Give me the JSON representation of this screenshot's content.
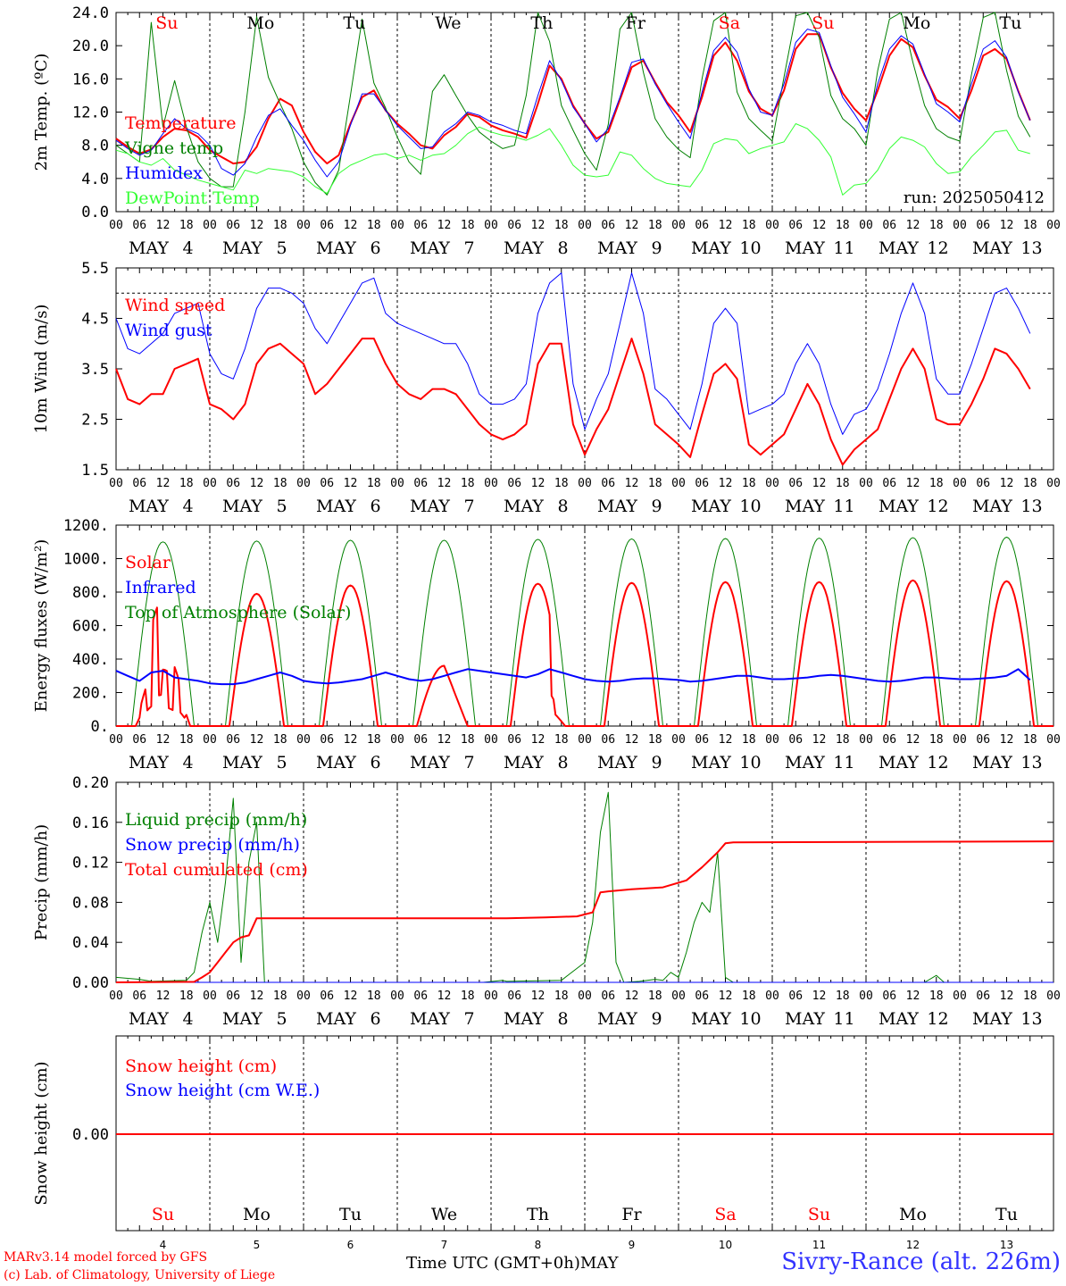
{
  "colors": {
    "red": "#ff0000",
    "green": "#008000",
    "blue": "#0000ff",
    "lightgreen": "#33ff33",
    "black": "#000000"
  },
  "day_numbers": [
    4,
    5,
    6,
    7,
    8,
    9,
    10,
    11,
    12,
    13
  ],
  "weekdays": [
    "Su",
    "Mo",
    "Tu",
    "We",
    "Th",
    "Fr",
    "Sa",
    "Su",
    "Mo",
    "Tu"
  ],
  "weekday_colors": [
    "red",
    "black",
    "black",
    "black",
    "black",
    "black",
    "red",
    "red",
    "black",
    "black"
  ],
  "month_label": "MAY",
  "hour_ticks": [
    "00",
    "06",
    "12",
    "18"
  ],
  "footer": {
    "credit_line1": "MARv3.14 model forced by GFS",
    "credit_line2": "(c) Lab. of Climatology, University of Liege",
    "x_title": "Time UTC (GMT+0h)",
    "x_title_month": "MAY",
    "station": "Sivry-Rance (alt. 226m)"
  },
  "chart_data": [
    {
      "type": "line",
      "id": "temperature",
      "ylabel": "2m Temp. (ºC)",
      "ylim": [
        0,
        24
      ],
      "yticks": [
        "0.0",
        "4.0",
        "8.0",
        "12.0",
        "16.0",
        "20.0",
        "24.0"
      ],
      "x_unit": "hours since MAY 4 00 UTC (3-hourly)",
      "annotation": "run: 2025050412",
      "series": [
        {
          "name": "Temperature",
          "color": "red",
          "width": 2,
          "values": [
            8.8,
            7.8,
            7.0,
            7.5,
            9.0,
            10.0,
            9.8,
            9.0,
            7.4,
            6.6,
            5.8,
            6.0,
            7.8,
            11.2,
            13.6,
            12.8,
            9.6,
            7.2,
            5.8,
            6.8,
            10.6,
            13.8,
            14.6,
            12.2,
            10.6,
            9.4,
            8.0,
            7.6,
            9.2,
            10.2,
            11.8,
            11.4,
            10.4,
            9.8,
            9.4,
            8.9,
            13.0,
            17.6,
            16.0,
            12.8,
            10.6,
            8.8,
            9.6,
            13.5,
            17.4,
            18.2,
            15.6,
            13.2,
            11.6,
            9.6,
            13.8,
            18.8,
            20.4,
            18.2,
            14.5,
            12.4,
            11.6,
            14.6,
            19.6,
            21.4,
            21.4,
            17.4,
            14.3,
            12.4,
            11.0,
            14.6,
            18.8,
            20.8,
            19.8,
            16.4,
            13.5,
            12.6,
            11.2,
            14.6,
            18.8,
            19.6,
            18.4,
            14.5,
            11.0
          ]
        },
        {
          "name": "Vigne temp",
          "color": "green",
          "width": 1,
          "values": [
            8.0,
            7.0,
            6.0,
            22.8,
            10.2,
            15.8,
            10.2,
            6.0,
            4.0,
            3.0,
            3.0,
            12.0,
            23.5,
            16.2,
            13.0,
            10.0,
            6.0,
            3.5,
            2.0,
            5.0,
            14.0,
            23.2,
            15.5,
            12.5,
            9.0,
            6.0,
            4.5,
            14.5,
            16.5,
            14.0,
            11.6,
            9.6,
            8.5,
            7.6,
            8.0,
            14.0,
            24.0,
            20.5,
            12.8,
            9.8,
            7.0,
            5.0,
            10.5,
            22.0,
            24.0,
            16.8,
            11.2,
            9.0,
            7.5,
            6.5,
            16.0,
            23.0,
            24.0,
            14.4,
            11.2,
            9.8,
            8.5,
            16.2,
            23.6,
            24.0,
            21.0,
            14.0,
            11.2,
            10.0,
            8.0,
            17.0,
            23.2,
            24.0,
            18.0,
            12.8,
            10.0,
            9.0,
            8.5,
            16.5,
            23.4,
            24.0,
            17.0,
            11.5,
            9.0
          ]
        },
        {
          "name": "Humidex",
          "color": "blue",
          "width": 1,
          "values": [
            8.6,
            7.6,
            6.8,
            7.4,
            9.4,
            11.2,
            10.0,
            9.4,
            8.0,
            5.2,
            4.4,
            5.8,
            9.0,
            11.6,
            12.4,
            10.4,
            8.6,
            6.2,
            4.2,
            6.0,
            10.4,
            14.2,
            14.2,
            12.2,
            10.4,
            9.0,
            7.6,
            7.8,
            9.6,
            10.6,
            12.0,
            11.6,
            10.8,
            10.4,
            9.8,
            9.4,
            14.0,
            18.2,
            15.8,
            12.6,
            10.6,
            8.4,
            10.0,
            13.8,
            18.0,
            18.4,
            15.4,
            13.0,
            10.8,
            8.8,
            14.4,
            19.4,
            21.0,
            19.2,
            14.8,
            12.0,
            11.6,
            15.4,
            20.4,
            22.0,
            21.6,
            17.6,
            13.8,
            11.8,
            9.6,
            15.4,
            19.6,
            21.2,
            20.2,
            16.6,
            13.0,
            12.0,
            10.8,
            15.4,
            19.6,
            20.6,
            18.6,
            14.4,
            11.0
          ]
        },
        {
          "name": "DewPoint Temp",
          "color": "lightgreen",
          "width": 1,
          "values": [
            7.4,
            7.0,
            6.0,
            5.6,
            6.4,
            5.0,
            4.4,
            3.8,
            3.4,
            3.0,
            2.6,
            5.0,
            4.6,
            5.2,
            5.0,
            4.8,
            4.2,
            3.0,
            2.2,
            4.6,
            5.6,
            6.2,
            6.8,
            7.0,
            6.4,
            6.8,
            6.2,
            6.8,
            7.0,
            8.0,
            9.4,
            10.2,
            9.6,
            9.2,
            9.0,
            8.6,
            9.2,
            10.0,
            8.0,
            5.6,
            4.4,
            4.2,
            4.4,
            7.2,
            6.8,
            5.2,
            4.0,
            3.4,
            3.2,
            3.0,
            5.0,
            8.2,
            8.8,
            8.6,
            7.0,
            7.6,
            8.0,
            8.4,
            10.6,
            10.0,
            8.6,
            6.6,
            2.0,
            3.2,
            3.4,
            5.0,
            7.6,
            9.0,
            8.6,
            7.8,
            5.8,
            4.6,
            4.8,
            6.6,
            8.0,
            9.6,
            9.8,
            7.4,
            7.0
          ]
        }
      ]
    },
    {
      "type": "line",
      "id": "wind",
      "ylabel": "10m Wind (m/s)",
      "ylim": [
        1.5,
        5.5
      ],
      "yticks": [
        "1.5",
        "2.5",
        "3.5",
        "4.5",
        "5.5"
      ],
      "hline": 5.0,
      "series": [
        {
          "name": "Wind speed",
          "color": "red",
          "width": 2,
          "values": [
            3.5,
            2.9,
            2.8,
            3.0,
            3.0,
            3.5,
            3.6,
            3.7,
            2.8,
            2.7,
            2.5,
            2.8,
            3.6,
            3.9,
            4.0,
            3.8,
            3.6,
            3.0,
            3.2,
            3.5,
            3.8,
            4.1,
            4.1,
            3.6,
            3.2,
            3.0,
            2.9,
            3.1,
            3.1,
            3.0,
            2.7,
            2.4,
            2.2,
            2.1,
            2.2,
            2.4,
            3.6,
            4.0,
            4.0,
            2.4,
            1.8,
            2.3,
            2.7,
            3.4,
            4.1,
            3.4,
            2.4,
            2.2,
            2.0,
            1.75,
            2.6,
            3.4,
            3.6,
            3.3,
            2.0,
            1.8,
            2.0,
            2.2,
            2.7,
            3.2,
            2.8,
            2.1,
            1.6,
            1.9,
            2.1,
            2.3,
            2.9,
            3.5,
            3.9,
            3.5,
            2.5,
            2.4,
            2.4,
            2.8,
            3.3,
            3.9,
            3.8,
            3.5,
            3.1
          ]
        },
        {
          "name": "Wind gust",
          "color": "blue",
          "width": 1,
          "values": [
            4.5,
            3.9,
            3.8,
            4.0,
            4.2,
            4.6,
            4.7,
            4.8,
            3.8,
            3.4,
            3.3,
            3.9,
            4.7,
            5.1,
            5.1,
            5.0,
            4.8,
            4.3,
            4.0,
            4.4,
            4.8,
            5.2,
            5.3,
            4.6,
            4.4,
            4.3,
            4.2,
            4.1,
            4.0,
            4.0,
            3.6,
            3.0,
            2.8,
            2.8,
            2.9,
            3.2,
            4.6,
            5.2,
            5.4,
            3.2,
            2.3,
            2.9,
            3.4,
            4.4,
            5.4,
            4.6,
            3.1,
            2.9,
            2.6,
            2.3,
            3.2,
            4.4,
            4.7,
            4.4,
            2.6,
            2.7,
            2.8,
            3.0,
            3.6,
            4.0,
            3.6,
            2.8,
            2.2,
            2.6,
            2.7,
            3.1,
            3.8,
            4.6,
            5.2,
            4.6,
            3.3,
            3.0,
            3.0,
            3.6,
            4.3,
            5.0,
            5.1,
            4.7,
            4.2
          ]
        }
      ]
    },
    {
      "type": "line",
      "id": "energy",
      "ylabel": "Energy fluxes (W/m²)",
      "ylim": [
        0,
        1200
      ],
      "yticks": [
        "0.",
        "200.",
        "400.",
        "600.",
        "800.",
        "1000.",
        "1200."
      ],
      "solar_peaks": [
        750,
        790,
        840,
        360,
        850,
        855,
        860,
        860,
        870,
        865
      ],
      "toa_peaks": [
        1100,
        1105,
        1110,
        1110,
        1115,
        1118,
        1120,
        1122,
        1125,
        1128
      ],
      "series": [
        {
          "name": "Solar",
          "color": "red",
          "width": 2
        },
        {
          "name": "Infrared",
          "color": "blue",
          "width": 2,
          "values": [
            330,
            300,
            270,
            320,
            330,
            290,
            280,
            270,
            255,
            250,
            250,
            260,
            280,
            300,
            320,
            300,
            270,
            260,
            255,
            260,
            270,
            280,
            300,
            320,
            300,
            280,
            270,
            280,
            300,
            320,
            340,
            330,
            320,
            310,
            300,
            290,
            310,
            340,
            320,
            300,
            280,
            270,
            265,
            270,
            280,
            285,
            285,
            280,
            275,
            265,
            270,
            280,
            290,
            300,
            300,
            290,
            280,
            280,
            285,
            290,
            300,
            305,
            300,
            290,
            280,
            270,
            265,
            270,
            280,
            290,
            290,
            285,
            280,
            280,
            285,
            290,
            300,
            340,
            275
          ]
        },
        {
          "name": "Top of Atmosphere (Solar)",
          "color": "green",
          "width": 1
        }
      ]
    },
    {
      "type": "line",
      "id": "precip",
      "ylabel": "Precip (mm/h)",
      "ylim": [
        0,
        0.2
      ],
      "yticks": [
        "0.00",
        "0.04",
        "0.08",
        "0.12",
        "0.16",
        "0.20"
      ],
      "series": [
        {
          "name": "Liquid precip (mm/h)",
          "color": "green",
          "width": 1,
          "points": [
            [
              0,
              0.005
            ],
            [
              6,
              0.003
            ],
            [
              9,
              0.001
            ],
            [
              18,
              0.002
            ],
            [
              20,
              0.01
            ],
            [
              22,
              0.05
            ],
            [
              24,
              0.08
            ],
            [
              26,
              0.04
            ],
            [
              28,
              0.1
            ],
            [
              30,
              0.184
            ],
            [
              32,
              0.02
            ],
            [
              34,
              0.12
            ],
            [
              36,
              0.16
            ],
            [
              38,
              0.0
            ],
            [
              94,
              0.0
            ],
            [
              99,
              0.002
            ],
            [
              100,
              0.001
            ],
            [
              114,
              0.002
            ],
            [
              116,
              0.008
            ],
            [
              120,
              0.02
            ],
            [
              122,
              0.06
            ],
            [
              124,
              0.15
            ],
            [
              126,
              0.19
            ],
            [
              128,
              0.02
            ],
            [
              130,
              0.0
            ],
            [
              134,
              0.001
            ],
            [
              138,
              0.003
            ],
            [
              140,
              0.002
            ],
            [
              142,
              0.01
            ],
            [
              144,
              0.005
            ],
            [
              146,
              0.03
            ],
            [
              148,
              0.06
            ],
            [
              150,
              0.08
            ],
            [
              152,
              0.07
            ],
            [
              154,
              0.13
            ],
            [
              156,
              0.005
            ],
            [
              158,
              0.0
            ],
            [
              207,
              0.0
            ],
            [
              210,
              0.007
            ],
            [
              212,
              0.0
            ],
            [
              240,
              0.0
            ]
          ]
        },
        {
          "name": "Snow precip (mm/h)",
          "color": "blue",
          "width": 1,
          "points": [
            [
              0,
              0
            ],
            [
              240,
              0
            ]
          ]
        },
        {
          "name": "Total cumulated (cm)",
          "color": "red",
          "width": 2,
          "points": [
            [
              0,
              0
            ],
            [
              20,
              0.0005
            ],
            [
              22,
              0.005
            ],
            [
              24,
              0.01
            ],
            [
              26,
              0.02
            ],
            [
              28,
              0.03
            ],
            [
              30,
              0.04
            ],
            [
              32,
              0.045
            ],
            [
              34,
              0.047
            ],
            [
              36,
              0.064
            ],
            [
              100,
              0.064
            ],
            [
              110,
              0.065
            ],
            [
              118,
              0.066
            ],
            [
              122,
              0.07
            ],
            [
              124,
              0.09
            ],
            [
              126,
              0.091
            ],
            [
              132,
              0.093
            ],
            [
              140,
              0.095
            ],
            [
              146,
              0.102
            ],
            [
              150,
              0.115
            ],
            [
              154,
              0.13
            ],
            [
              156,
              0.139
            ],
            [
              158,
              0.14
            ],
            [
              240,
              0.141
            ]
          ]
        }
      ]
    },
    {
      "type": "line",
      "id": "snow",
      "ylabel": "Snow height (cm)",
      "yticks": [
        "0.00"
      ],
      "series": [
        {
          "name": "Snow height (cm)",
          "color": "red",
          "width": 2,
          "constant": 0
        },
        {
          "name": "Snow height (cm W.E.)",
          "color": "blue",
          "width": 2,
          "constant": 0
        }
      ]
    }
  ]
}
